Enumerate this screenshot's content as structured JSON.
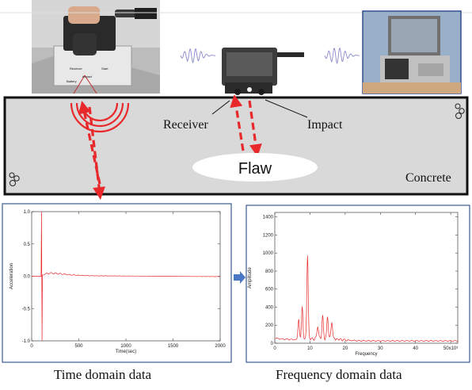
{
  "labels": {
    "receiver": "Receiver",
    "impact": "Impact",
    "flaw": "Flaw",
    "concrete": "Concrete"
  },
  "device_label_fragments": [
    "Receiver",
    "Start",
    "Impact",
    "Battery"
  ],
  "captions": {
    "time": "Time domain data",
    "frequency": "Frequency domain data"
  },
  "colors": {
    "signal_line": "#e8282a",
    "dashed_arrow": "#e8282a",
    "concrete_fill": "#d9d9d9",
    "wave_line": "#8888cc",
    "panel_border": "#3b5a8a",
    "flow_arrow": "#4a78c4"
  },
  "chart_data": [
    {
      "type": "line",
      "title": "",
      "xlabel": "Time(sec)",
      "ylabel": "Acceleration",
      "xlim": [
        0,
        2000
      ],
      "ylim": [
        -1.0,
        1.0
      ],
      "xticks": [
        0,
        500,
        1000,
        1500,
        2000
      ],
      "xtick_labels": [
        "0",
        "500",
        "1000",
        "1500",
        "2000"
      ],
      "yticks": [
        -1.0,
        -0.5,
        0.0,
        0.5,
        1.0
      ],
      "ytick_labels": [
        "-1.0",
        "-0.5",
        "0.0",
        "0.5",
        "1.0"
      ],
      "signal": {
        "onset": 100,
        "peak_max": 1.0,
        "peak_min": -1.0,
        "decay_end": 700,
        "baseline": 0.0
      }
    },
    {
      "type": "line",
      "title": "",
      "xlabel": "Frequency",
      "ylabel": "Amplitude",
      "xlim": [
        0,
        52
      ],
      "ylim": [
        0,
        1450
      ],
      "xticks": [
        0,
        10,
        20,
        30,
        40,
        50
      ],
      "xtick_labels": [
        "0",
        "10",
        "20",
        "30",
        "40",
        "50x10³"
      ],
      "yticks": [
        0,
        200,
        400,
        600,
        800,
        1000,
        1200,
        1400
      ],
      "ytick_labels": [
        "0",
        "200",
        "400",
        "600",
        "800",
        "1000",
        "1200",
        "1400"
      ],
      "peaks": [
        {
          "x": 6.8,
          "y": 230
        },
        {
          "x": 7.8,
          "y": 360
        },
        {
          "x": 9.3,
          "y": 930
        },
        {
          "x": 12.2,
          "y": 150
        },
        {
          "x": 13.6,
          "y": 250
        },
        {
          "x": 15.0,
          "y": 250
        },
        {
          "x": 16.2,
          "y": 200
        }
      ]
    }
  ]
}
